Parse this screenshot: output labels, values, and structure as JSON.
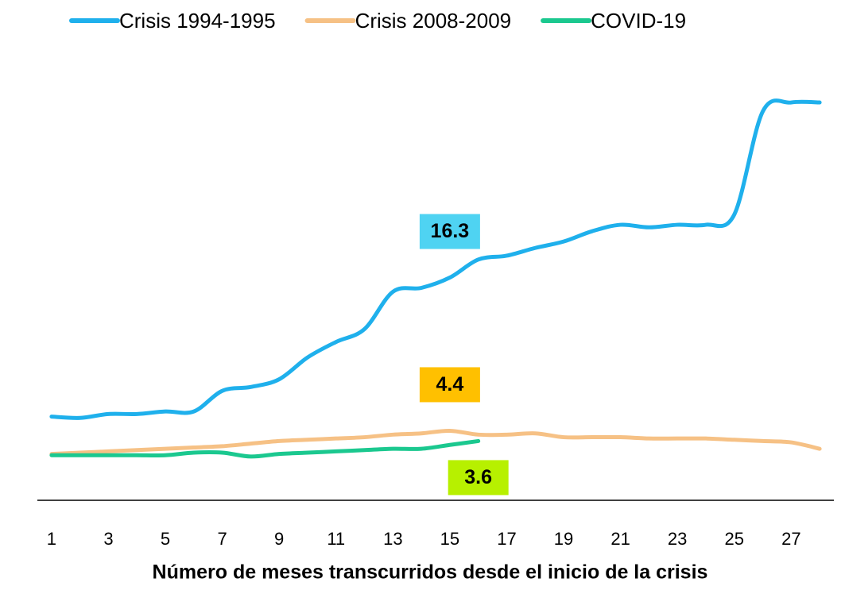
{
  "chart_data": {
    "type": "line",
    "xlabel": "Número de meses transcurridos desde el inicio de la crisis",
    "x": [
      1,
      2,
      3,
      4,
      5,
      6,
      7,
      8,
      9,
      10,
      11,
      12,
      13,
      14,
      15,
      16,
      17,
      18,
      19,
      20,
      21,
      22,
      23,
      24,
      25,
      26,
      27,
      28
    ],
    "xlim": [
      0.5,
      28.5
    ],
    "xticks": [
      1,
      3,
      5,
      7,
      9,
      11,
      13,
      15,
      17,
      19,
      21,
      23,
      25,
      27
    ],
    "ylim": [
      -1,
      32
    ],
    "legend": "top",
    "series": [
      {
        "name": "Crisis 1994-1995",
        "color": "#1fb0ec",
        "labeled_x": 15,
        "label_color": "#4fd3f2",
        "label_position": "above",
        "values": [
          5.5,
          5.4,
          5.7,
          5.7,
          5.9,
          5.9,
          7.5,
          7.8,
          8.4,
          10.1,
          11.3,
          12.3,
          15.2,
          15.5,
          16.3,
          17.7,
          18.0,
          18.6,
          19.1,
          19.9,
          20.4,
          20.2,
          20.4,
          20.4,
          21.2,
          29.2,
          29.9,
          29.9
        ]
      },
      {
        "name": "Crisis 2008-2009",
        "color": "#f6c185",
        "labeled_x": 15,
        "label_color": "#ffc000",
        "label_position": "above",
        "values": [
          2.6,
          2.7,
          2.8,
          2.9,
          3.0,
          3.1,
          3.2,
          3.4,
          3.6,
          3.7,
          3.8,
          3.9,
          4.1,
          4.2,
          4.4,
          4.1,
          4.1,
          4.2,
          3.9,
          3.9,
          3.9,
          3.8,
          3.8,
          3.8,
          3.7,
          3.6,
          3.5,
          3.0
        ]
      },
      {
        "name": "COVID-19",
        "color": "#1bc88f",
        "labeled_x": 16,
        "label_color": "#b7f000",
        "label_position": "below",
        "values": [
          2.5,
          2.5,
          2.5,
          2.5,
          2.5,
          2.7,
          2.7,
          2.4,
          2.6,
          2.7,
          2.8,
          2.9,
          3.0,
          3.0,
          3.3,
          3.6,
          null,
          null,
          null,
          null,
          null,
          null,
          null,
          null,
          null,
          null,
          null,
          null
        ]
      }
    ]
  }
}
